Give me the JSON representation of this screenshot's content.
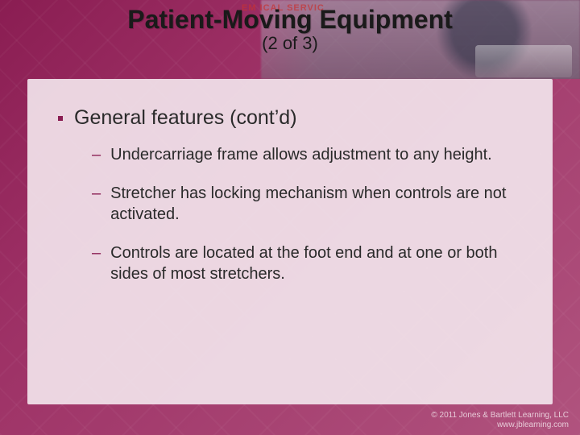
{
  "background": {
    "gradient_colors": [
      "#8a1d52",
      "#9c2f64",
      "#b0537e"
    ],
    "panel_color": "rgba(242,228,236,0.92)"
  },
  "header_photo": {
    "ambulance_label": "EM            ICAL SERVIC"
  },
  "title": "Patient-Moving Equipment",
  "subtitle": "(2 of 3)",
  "bullet_color": "#8a1d52",
  "level1": {
    "text": "General features (cont’d)"
  },
  "level2": [
    {
      "text": "Undercarriage frame allows adjustment to any height."
    },
    {
      "text": "Stretcher has locking mechanism when controls are not activated."
    },
    {
      "text": "Controls are located at the foot end and at one or both sides of most stretchers."
    }
  ],
  "footer": {
    "line1": "© 2011 Jones & Bartlett Learning, LLC",
    "line2": "www.jblearning.com"
  }
}
